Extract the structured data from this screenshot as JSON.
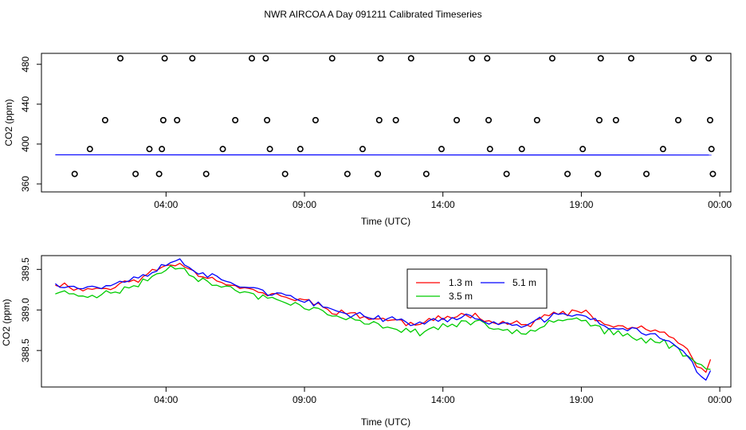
{
  "title": "NWR AIRCOA A  Day 091211  Calibrated Timeseries",
  "chart_data": [
    {
      "type": "scatter",
      "xlabel": "Time (UTC)",
      "ylabel": "CO2 (ppm)",
      "x_ticks": [
        "04:00",
        "09:00",
        "14:00",
        "19:00",
        "00:00"
      ],
      "y_ticks": [
        "360",
        "400",
        "440",
        "480"
      ],
      "xlim_hours": [
        -0.5,
        24.4
      ],
      "ylim": [
        352,
        491
      ],
      "grid": false,
      "cal_points": {
        "x_hours": [
          0.7,
          1.25,
          1.8,
          2.35,
          2.9,
          3.4,
          3.75,
          3.85,
          3.9,
          3.95,
          4.4,
          4.95,
          5.45,
          6.05,
          6.5,
          7.1,
          7.6,
          7.65,
          7.75,
          8.3,
          8.85,
          9.4,
          10.0,
          10.55,
          11.1,
          11.65,
          11.7,
          11.75,
          12.3,
          12.85,
          13.4,
          13.95,
          14.5,
          15.05,
          15.6,
          15.65,
          15.7,
          16.3,
          16.85,
          17.4,
          17.95,
          18.5,
          19.05,
          19.6,
          19.65,
          19.7,
          20.25,
          20.8,
          21.35,
          21.95,
          22.5,
          23.05,
          23.6,
          23.65,
          23.7,
          23.75
        ],
        "y_ppm": [
          370,
          395,
          424,
          486,
          370,
          395,
          370,
          395,
          424,
          486,
          424,
          486,
          370,
          395,
          424,
          486,
          486,
          424,
          395,
          370,
          395,
          424,
          486,
          370,
          395,
          370,
          424,
          486,
          424,
          486,
          370,
          395,
          424,
          486,
          486,
          424,
          395,
          370,
          395,
          424,
          486,
          370,
          395,
          370,
          424,
          486,
          424,
          486,
          370,
          395,
          424,
          486,
          486,
          424,
          395,
          370
        ]
      },
      "line": {
        "color": "#0000ff",
        "x_hours": [
          0.0,
          23.7
        ],
        "y_ppm": [
          389.2,
          389.0
        ]
      }
    },
    {
      "type": "line",
      "xlabel": "Time (UTC)",
      "ylabel": "CO2 (ppm)",
      "x_ticks": [
        "04:00",
        "09:00",
        "14:00",
        "19:00",
        "00:00"
      ],
      "y_ticks": [
        "388.5",
        "389.0",
        "389.5"
      ],
      "xlim_hours": [
        -0.5,
        24.4
      ],
      "ylim": [
        388.05,
        389.67
      ],
      "grid": false,
      "legend_position": "top-right",
      "series": [
        {
          "name": "1.3 m",
          "color": "#ff0000",
          "knots_hours": [
            0.0,
            1.0,
            2.0,
            3.0,
            4.0,
            4.5,
            5.0,
            6.0,
            7.0,
            8.0,
            9.0,
            10.0,
            11.0,
            12.0,
            13.0,
            14.0,
            15.0,
            16.0,
            17.0,
            18.0,
            19.0,
            20.0,
            21.0,
            22.0,
            22.8,
            23.2,
            23.5,
            23.8
          ],
          "knots_ppm": [
            389.33,
            389.25,
            389.28,
            389.38,
            389.55,
            389.58,
            389.47,
            389.35,
            389.25,
            389.17,
            389.12,
            389.0,
            388.92,
            388.88,
            388.82,
            388.9,
            388.95,
            388.85,
            388.82,
            388.95,
            388.98,
            388.8,
            388.78,
            388.72,
            388.5,
            388.3,
            388.22,
            388.52
          ],
          "amp": 0.032,
          "seed": 11
        },
        {
          "name": "3.5 m",
          "color": "#00cc00",
          "knots_hours": [
            0.0,
            1.0,
            2.0,
            3.0,
            4.0,
            4.5,
            5.0,
            6.0,
            7.0,
            8.0,
            9.0,
            10.0,
            11.0,
            12.0,
            13.0,
            14.0,
            15.0,
            16.0,
            17.0,
            18.0,
            19.0,
            20.0,
            21.0,
            22.0,
            22.8,
            23.2,
            23.5,
            23.8
          ],
          "knots_ppm": [
            389.22,
            389.18,
            389.2,
            389.32,
            389.5,
            389.55,
            389.42,
            389.28,
            389.2,
            389.12,
            389.05,
            388.93,
            388.84,
            388.8,
            388.72,
            388.8,
            388.86,
            388.75,
            388.74,
            388.88,
            388.9,
            388.72,
            388.65,
            388.6,
            388.45,
            388.35,
            388.25,
            388.3
          ],
          "amp": 0.035,
          "seed": 23
        },
        {
          "name": "5.1 m",
          "color": "#0000ff",
          "knots_hours": [
            0.0,
            1.0,
            2.0,
            3.0,
            4.0,
            4.5,
            5.0,
            6.0,
            7.0,
            8.0,
            9.0,
            10.0,
            11.0,
            12.0,
            13.0,
            14.0,
            15.0,
            16.0,
            17.0,
            18.0,
            19.0,
            20.0,
            21.0,
            22.0,
            22.8,
            23.2,
            23.5,
            23.8
          ],
          "knots_ppm": [
            389.33,
            389.27,
            389.3,
            389.4,
            389.55,
            389.62,
            389.5,
            389.36,
            389.28,
            389.2,
            389.1,
            389.0,
            388.93,
            388.9,
            388.83,
            388.88,
            388.92,
            388.83,
            388.8,
            388.93,
            388.95,
            388.78,
            388.75,
            388.66,
            388.45,
            388.2,
            388.15,
            388.35
          ],
          "amp": 0.032,
          "seed": 37
        }
      ]
    }
  ]
}
